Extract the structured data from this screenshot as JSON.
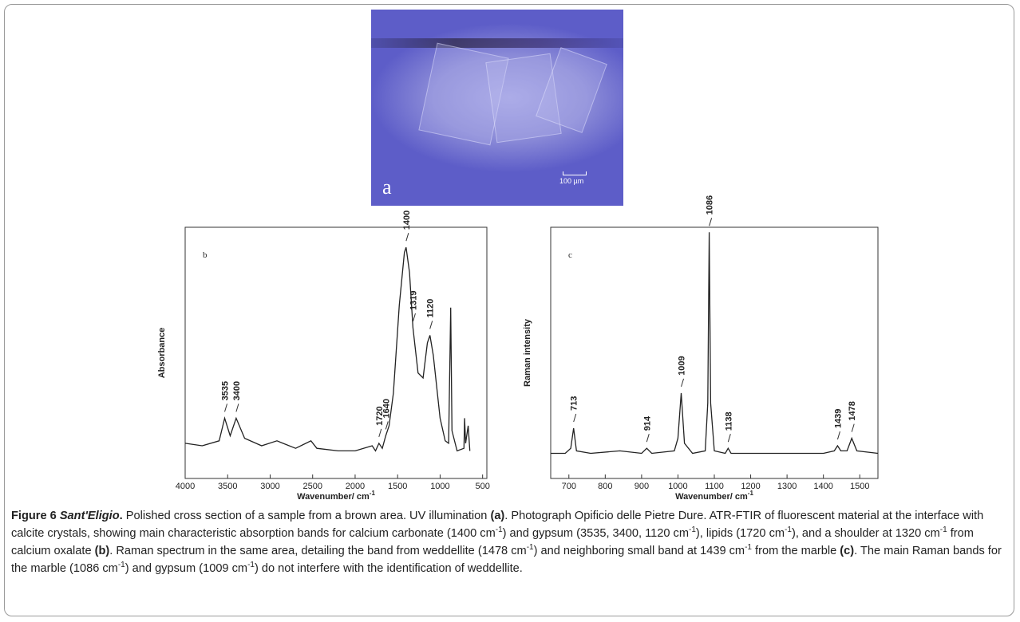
{
  "photo": {
    "label": "a",
    "scale_label": "100 µm"
  },
  "chart_data": [
    {
      "type": "line",
      "panel_label": "b",
      "y_label": "Absorbance",
      "x_label": "Wavenumber/ cm",
      "x_label_sup": "-1",
      "color": "#222222",
      "xlim": [
        4000,
        450
      ],
      "xticks": [
        4000,
        3500,
        3000,
        2500,
        2000,
        1500,
        1000,
        500
      ],
      "ylim": [
        0,
        1
      ],
      "x": [
        4000,
        3800,
        3600,
        3535,
        3470,
        3400,
        3300,
        3100,
        2920,
        2850,
        2700,
        2520,
        2450,
        2200,
        2000,
        1800,
        1760,
        1720,
        1680,
        1640,
        1600,
        1550,
        1480,
        1420,
        1400,
        1360,
        1320,
        1260,
        1200,
        1150,
        1120,
        1080,
        1000,
        940,
        900,
        875,
        860,
        800,
        720,
        712,
        700,
        670,
        650
      ],
      "values": [
        0.14,
        0.13,
        0.15,
        0.24,
        0.17,
        0.24,
        0.16,
        0.13,
        0.15,
        0.14,
        0.12,
        0.15,
        0.12,
        0.11,
        0.11,
        0.13,
        0.11,
        0.14,
        0.12,
        0.17,
        0.21,
        0.34,
        0.69,
        0.9,
        0.92,
        0.82,
        0.6,
        0.42,
        0.4,
        0.54,
        0.57,
        0.49,
        0.24,
        0.15,
        0.14,
        0.68,
        0.19,
        0.11,
        0.12,
        0.24,
        0.14,
        0.21,
        0.11
      ],
      "annotations": [
        3535,
        3400,
        1720,
        1640,
        1400,
        1319,
        1120
      ]
    },
    {
      "type": "line",
      "panel_label": "c",
      "y_label": "Raman intensity",
      "x_label": "Wavenumber/ cm",
      "x_label_sup": "-1",
      "color": "#222222",
      "xlim": [
        650,
        1550
      ],
      "xticks": [
        700,
        800,
        900,
        1000,
        1100,
        1200,
        1300,
        1400,
        1500
      ],
      "ylim": [
        0,
        1
      ],
      "x": [
        650,
        690,
        705,
        713,
        721,
        760,
        840,
        900,
        914,
        928,
        990,
        1000,
        1009,
        1018,
        1040,
        1075,
        1082,
        1086,
        1090,
        1100,
        1130,
        1138,
        1146,
        1200,
        1300,
        1400,
        1430,
        1439,
        1448,
        1465,
        1478,
        1492,
        1550
      ],
      "values": [
        0.1,
        0.1,
        0.12,
        0.2,
        0.11,
        0.1,
        0.11,
        0.1,
        0.12,
        0.1,
        0.11,
        0.16,
        0.34,
        0.14,
        0.1,
        0.11,
        0.3,
        0.98,
        0.3,
        0.11,
        0.1,
        0.12,
        0.1,
        0.1,
        0.1,
        0.1,
        0.11,
        0.13,
        0.11,
        0.11,
        0.16,
        0.11,
        0.1
      ],
      "annotations": [
        713,
        914,
        1009,
        1086,
        1138,
        1439,
        1478
      ]
    }
  ],
  "caption": [
    {
      "text": "Figure 6 ",
      "style": "b"
    },
    {
      "text": "Sant'Eligio",
      "style": "bi"
    },
    {
      "text": ".",
      "style": "b"
    },
    {
      "text": " Polished cross section of a sample from a brown area. UV illumination "
    },
    {
      "text": "(a)",
      "style": "b"
    },
    {
      "text": ". Photograph Opificio delle Pietre Dure. ATR-FTIR of fluorescent material at the interface with calcite crystals, showing main characteristic absorption bands for calcium carbonate (1400 cm"
    },
    {
      "text": "-1",
      "style": "sup"
    },
    {
      "text": ") and gypsum (3535, 3400, 1120 cm"
    },
    {
      "text": "-1",
      "style": "sup"
    },
    {
      "text": "), lipids (1720 cm"
    },
    {
      "text": "-1",
      "style": "sup"
    },
    {
      "text": "), and a shoulder at 1320 cm"
    },
    {
      "text": "-1",
      "style": "sup"
    },
    {
      "text": " from calcium oxalate "
    },
    {
      "text": "(b)",
      "style": "b"
    },
    {
      "text": ". Raman spectrum in the same area, detailing the band from weddellite (1478 cm"
    },
    {
      "text": "-1",
      "style": "sup"
    },
    {
      "text": ") and neighboring small band at 1439 cm"
    },
    {
      "text": "-1",
      "style": "sup"
    },
    {
      "text": " from the marble "
    },
    {
      "text": "(c)",
      "style": "b"
    },
    {
      "text": ". The main Raman bands for the marble (1086 cm"
    },
    {
      "text": "-1",
      "style": "sup"
    },
    {
      "text": ") and gypsum (1009 cm"
    },
    {
      "text": "-1",
      "style": "sup"
    },
    {
      "text": ") do not interfere with the identification of weddellite."
    }
  ]
}
